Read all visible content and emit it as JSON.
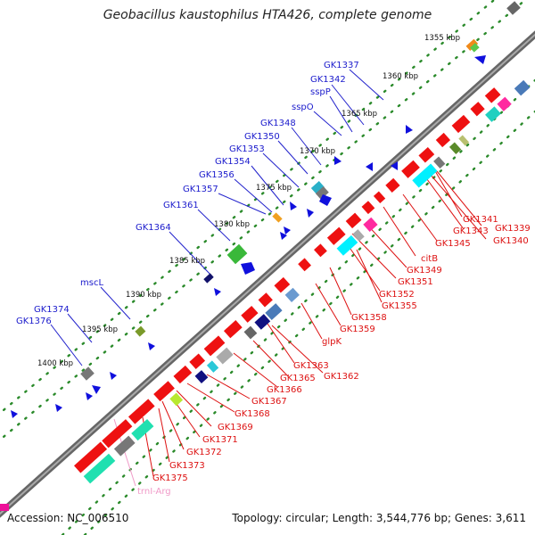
{
  "title": "Geobacillus kaustophilus HTA426, complete genome",
  "accession_text": "Accession: NC_006510",
  "topology_text": "Topology: circular; Length: 3,544,776 bp; Genes: 3,611",
  "kbp_ticks": [
    "1355 kbp",
    "1360 kbp",
    "1365 kbp",
    "1370 kbp",
    "1375 kbp",
    "1380 kbp",
    "1385 kbp",
    "1390 kbp",
    "1395 kbp",
    "1400 kbp"
  ],
  "forward_gene_labels": [
    "GK1337",
    "GK1342",
    "sspP",
    "sspO",
    "GK1348",
    "GK1350",
    "GK1353",
    "GK1354",
    "GK1356",
    "GK1357",
    "GK1361",
    "GK1364",
    "mscL",
    "GK1374",
    "GK1376"
  ],
  "reverse_gene_labels": [
    "GK1341",
    "GK1339",
    "GK1343",
    "GK1340",
    "GK1345",
    "citB",
    "GK1349",
    "GK1351",
    "GK1352",
    "GK1355",
    "GK1358",
    "GK1359",
    "glpK",
    "GK1363",
    "GK1362",
    "GK1365",
    "GK1366",
    "GK1367",
    "GK1368",
    "GK1369",
    "GK1371",
    "GK1372",
    "GK1373",
    "GK1375"
  ],
  "rna_label": "trnI-Arg",
  "colors": {
    "forward_label": "#1a1acc",
    "reverse_label": "#dd1111",
    "rna_label": "#f09ac8",
    "backbone": "#666666",
    "tick_dots": "#2a8a2a"
  }
}
